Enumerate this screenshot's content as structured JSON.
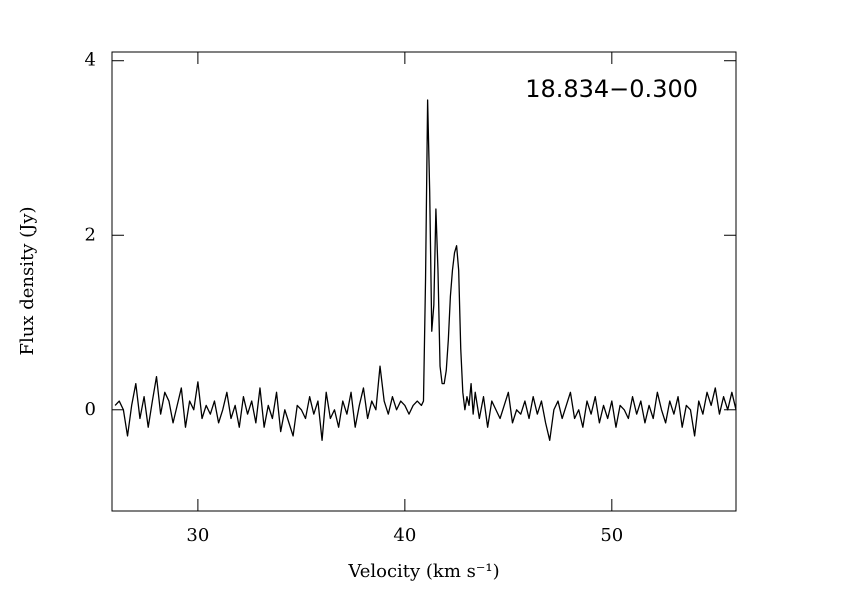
{
  "chart_data": {
    "type": "line",
    "title": "18.834−0.300",
    "xlabel": "Velocity (km s⁻¹)",
    "ylabel": "Flux density (Jy)",
    "xlim": [
      25.85,
      56.0
    ],
    "ylim": [
      -1.16,
      4.1
    ],
    "xticks": [
      30,
      40,
      50
    ],
    "yticks": [
      0,
      2,
      4
    ],
    "x": [
      26.0,
      26.2,
      26.4,
      26.6,
      26.8,
      27.0,
      27.2,
      27.4,
      27.6,
      27.8,
      28.0,
      28.2,
      28.4,
      28.6,
      28.8,
      29.0,
      29.2,
      29.4,
      29.6,
      29.8,
      30.0,
      30.2,
      30.4,
      30.6,
      30.8,
      31.0,
      31.2,
      31.4,
      31.6,
      31.8,
      32.0,
      32.2,
      32.4,
      32.6,
      32.8,
      33.0,
      33.2,
      33.4,
      33.6,
      33.8,
      34.0,
      34.2,
      34.4,
      34.6,
      34.8,
      35.0,
      35.2,
      35.4,
      35.6,
      35.8,
      36.0,
      36.2,
      36.4,
      36.6,
      36.8,
      37.0,
      37.2,
      37.4,
      37.6,
      37.8,
      38.0,
      38.2,
      38.4,
      38.6,
      38.8,
      39.0,
      39.2,
      39.4,
      39.6,
      39.8,
      40.0,
      40.2,
      40.4,
      40.6,
      40.8,
      40.9,
      41.0,
      41.1,
      41.2,
      41.3,
      41.4,
      41.5,
      41.6,
      41.7,
      41.8,
      41.9,
      42.0,
      42.1,
      42.2,
      42.3,
      42.4,
      42.5,
      42.6,
      42.7,
      42.8,
      42.9,
      43.0,
      43.1,
      43.2,
      43.3,
      43.4,
      43.6,
      43.8,
      44.0,
      44.2,
      44.4,
      44.6,
      44.8,
      45.0,
      45.2,
      45.4,
      45.6,
      45.8,
      46.0,
      46.2,
      46.4,
      46.6,
      46.8,
      47.0,
      47.2,
      47.4,
      47.6,
      47.8,
      48.0,
      48.2,
      48.4,
      48.6,
      48.8,
      49.0,
      49.2,
      49.4,
      49.6,
      49.8,
      50.0,
      50.2,
      50.4,
      50.6,
      50.8,
      51.0,
      51.2,
      51.4,
      51.6,
      51.8,
      52.0,
      52.2,
      52.4,
      52.6,
      52.8,
      53.0,
      53.2,
      53.4,
      53.6,
      53.8,
      54.0,
      54.2,
      54.4,
      54.6,
      54.8,
      55.0,
      55.2,
      55.4,
      55.6,
      55.8,
      56.0
    ],
    "series": [
      {
        "color": "#000000",
        "values": [
          0.05,
          0.1,
          0.0,
          -0.3,
          0.05,
          0.3,
          -0.1,
          0.15,
          -0.2,
          0.1,
          0.38,
          -0.05,
          0.2,
          0.1,
          -0.15,
          0.05,
          0.25,
          -0.2,
          0.1,
          0.0,
          0.32,
          -0.1,
          0.05,
          -0.05,
          0.1,
          -0.15,
          0.0,
          0.2,
          -0.1,
          0.05,
          -0.2,
          0.15,
          -0.05,
          0.1,
          -0.15,
          0.25,
          -0.2,
          0.05,
          -0.1,
          0.2,
          -0.25,
          0.0,
          -0.15,
          -0.3,
          0.05,
          0.0,
          -0.1,
          0.15,
          -0.05,
          0.1,
          -0.35,
          0.2,
          -0.1,
          0.0,
          -0.2,
          0.1,
          -0.05,
          0.2,
          -0.2,
          0.05,
          0.25,
          -0.1,
          0.1,
          0.0,
          0.5,
          0.1,
          -0.05,
          0.15,
          0.0,
          0.1,
          0.05,
          -0.05,
          0.05,
          0.1,
          0.05,
          0.1,
          1.5,
          3.55,
          2.5,
          0.9,
          1.2,
          2.3,
          1.6,
          0.5,
          0.3,
          0.3,
          0.45,
          0.8,
          1.3,
          1.6,
          1.8,
          1.88,
          1.6,
          0.7,
          0.2,
          0.0,
          0.15,
          0.05,
          0.3,
          -0.05,
          0.2,
          -0.1,
          0.15,
          -0.2,
          0.1,
          0.0,
          -0.1,
          0.05,
          0.2,
          -0.15,
          0.0,
          -0.05,
          0.1,
          -0.1,
          0.15,
          -0.05,
          0.1,
          -0.15,
          -0.35,
          0.0,
          0.1,
          -0.1,
          0.05,
          0.2,
          -0.1,
          0.0,
          -0.2,
          0.1,
          -0.05,
          0.15,
          -0.15,
          0.05,
          -0.1,
          0.1,
          -0.2,
          0.05,
          0.0,
          -0.1,
          0.15,
          -0.05,
          0.1,
          -0.15,
          0.05,
          -0.1,
          0.2,
          0.0,
          -0.15,
          0.1,
          -0.05,
          0.15,
          -0.2,
          0.05,
          0.0,
          -0.3,
          0.1,
          -0.05,
          0.2,
          0.05,
          0.25,
          -0.05,
          0.15,
          0.0,
          0.2,
          0.0
        ]
      }
    ]
  }
}
